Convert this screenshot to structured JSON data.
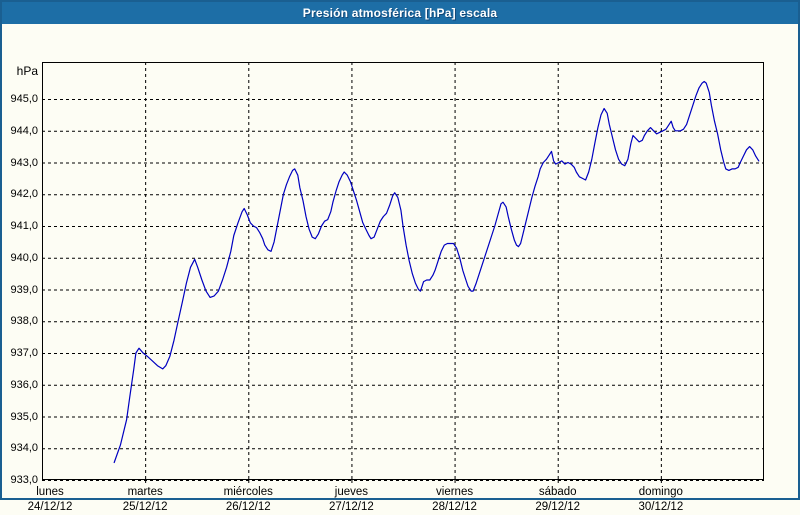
{
  "window": {
    "title": "Presión atmosférica [hPa] escala"
  },
  "colors": {
    "titlebar_bg": "#1d6ea6",
    "titlebar_text": "#ffffff",
    "outer_border": "#1a5f91",
    "background": "#fdfdf4",
    "line": "#0000c0",
    "grid": "#000000",
    "text": "#000000"
  },
  "chart_data": {
    "type": "line",
    "title": "Presión atmosférica [hPa] escala",
    "unit_label": "hPa",
    "ylabel": "hPa",
    "ylim": [
      933.0,
      946.0
    ],
    "ytick_values": [
      945,
      944,
      943,
      942,
      941,
      940,
      939,
      938,
      937,
      936,
      935,
      934,
      933
    ],
    "ytick_labels": [
      "945,0",
      "944,0",
      "943,0",
      "942,0",
      "941,0",
      "940,0",
      "939,0",
      "938,0",
      "937,0",
      "936,0",
      "935,0",
      "934,0",
      "933,0"
    ],
    "x_axis_days": [
      {
        "name": "lunes",
        "date": "24/12/12"
      },
      {
        "name": "martes",
        "date": "25/12/12"
      },
      {
        "name": "miércoles",
        "date": "26/12/12"
      },
      {
        "name": "jueves",
        "date": "27/12/12"
      },
      {
        "name": "viernes",
        "date": "28/12/12"
      },
      {
        "name": "sábado",
        "date": "29/12/12"
      },
      {
        "name": "domingo",
        "date": "30/12/12"
      }
    ],
    "grid": "dashed",
    "legend": false,
    "series": [
      {
        "name": "Presión atmosférica",
        "color": "#0000c0",
        "x_unit": "days_since_2012-12-24",
        "points": [
          [
            0.7,
            933.55
          ],
          [
            0.76,
            934.1
          ],
          [
            0.82,
            934.9
          ],
          [
            0.85,
            935.6
          ],
          [
            0.89,
            936.5
          ],
          [
            0.91,
            937.0
          ],
          [
            0.94,
            937.15
          ],
          [
            0.98,
            937.0
          ],
          [
            1.02,
            936.9
          ],
          [
            1.07,
            936.75
          ],
          [
            1.12,
            936.6
          ],
          [
            1.17,
            936.5
          ],
          [
            1.2,
            936.6
          ],
          [
            1.24,
            936.9
          ],
          [
            1.28,
            937.4
          ],
          [
            1.32,
            938.0
          ],
          [
            1.36,
            938.6
          ],
          [
            1.4,
            939.2
          ],
          [
            1.44,
            939.7
          ],
          [
            1.48,
            939.95
          ],
          [
            1.51,
            939.7
          ],
          [
            1.55,
            939.3
          ],
          [
            1.59,
            938.95
          ],
          [
            1.63,
            938.75
          ],
          [
            1.67,
            938.8
          ],
          [
            1.71,
            938.95
          ],
          [
            1.75,
            939.3
          ],
          [
            1.79,
            939.7
          ],
          [
            1.83,
            940.2
          ],
          [
            1.86,
            940.7
          ],
          [
            1.9,
            941.1
          ],
          [
            1.94,
            941.45
          ],
          [
            1.96,
            941.55
          ],
          [
            1.99,
            941.35
          ],
          [
            2.02,
            941.1
          ],
          [
            2.05,
            941.0
          ],
          [
            2.08,
            940.95
          ],
          [
            2.11,
            940.8
          ],
          [
            2.14,
            940.6
          ],
          [
            2.16,
            940.4
          ],
          [
            2.19,
            940.25
          ],
          [
            2.22,
            940.2
          ],
          [
            2.25,
            940.5
          ],
          [
            2.28,
            941.0
          ],
          [
            2.31,
            941.5
          ],
          [
            2.34,
            942.0
          ],
          [
            2.37,
            942.3
          ],
          [
            2.4,
            942.55
          ],
          [
            2.43,
            942.75
          ],
          [
            2.45,
            942.8
          ],
          [
            2.48,
            942.6
          ],
          [
            2.5,
            942.2
          ],
          [
            2.53,
            941.8
          ],
          [
            2.56,
            941.3
          ],
          [
            2.59,
            940.9
          ],
          [
            2.62,
            940.65
          ],
          [
            2.65,
            940.6
          ],
          [
            2.68,
            940.75
          ],
          [
            2.71,
            941.0
          ],
          [
            2.74,
            941.15
          ],
          [
            2.77,
            941.2
          ],
          [
            2.8,
            941.45
          ],
          [
            2.82,
            941.75
          ],
          [
            2.85,
            942.1
          ],
          [
            2.88,
            942.4
          ],
          [
            2.91,
            942.6
          ],
          [
            2.93,
            942.7
          ],
          [
            2.96,
            942.6
          ],
          [
            2.99,
            942.4
          ],
          [
            3.02,
            942.1
          ],
          [
            3.05,
            941.8
          ],
          [
            3.08,
            941.45
          ],
          [
            3.11,
            941.1
          ],
          [
            3.14,
            940.9
          ],
          [
            3.17,
            940.7
          ],
          [
            3.19,
            940.6
          ],
          [
            3.22,
            940.65
          ],
          [
            3.25,
            940.9
          ],
          [
            3.28,
            941.15
          ],
          [
            3.31,
            941.3
          ],
          [
            3.34,
            941.4
          ],
          [
            3.37,
            941.65
          ],
          [
            3.4,
            941.95
          ],
          [
            3.42,
            942.05
          ],
          [
            3.45,
            941.9
          ],
          [
            3.48,
            941.5
          ],
          [
            3.5,
            941.0
          ],
          [
            3.53,
            940.4
          ],
          [
            3.56,
            939.9
          ],
          [
            3.59,
            939.5
          ],
          [
            3.62,
            939.2
          ],
          [
            3.65,
            939.0
          ],
          [
            3.67,
            938.95
          ],
          [
            3.7,
            939.25
          ],
          [
            3.73,
            939.3
          ],
          [
            3.76,
            939.3
          ],
          [
            3.79,
            939.45
          ],
          [
            3.81,
            939.6
          ],
          [
            3.84,
            939.9
          ],
          [
            3.87,
            940.2
          ],
          [
            3.9,
            940.4
          ],
          [
            3.93,
            940.45
          ],
          [
            3.96,
            940.45
          ],
          [
            3.99,
            940.45
          ],
          [
            4.02,
            940.3
          ],
          [
            4.05,
            940.0
          ],
          [
            4.08,
            939.6
          ],
          [
            4.11,
            939.3
          ],
          [
            4.13,
            939.1
          ],
          [
            4.16,
            938.95
          ],
          [
            4.18,
            938.95
          ],
          [
            4.21,
            939.2
          ],
          [
            4.24,
            939.5
          ],
          [
            4.27,
            939.8
          ],
          [
            4.3,
            940.1
          ],
          [
            4.33,
            940.4
          ],
          [
            4.36,
            940.7
          ],
          [
            4.39,
            941.0
          ],
          [
            4.42,
            941.35
          ],
          [
            4.45,
            941.7
          ],
          [
            4.47,
            941.75
          ],
          [
            4.5,
            941.6
          ],
          [
            4.52,
            941.3
          ],
          [
            4.55,
            940.9
          ],
          [
            4.58,
            940.55
          ],
          [
            4.6,
            940.4
          ],
          [
            4.62,
            940.35
          ],
          [
            4.64,
            940.45
          ],
          [
            4.66,
            940.7
          ],
          [
            4.69,
            941.1
          ],
          [
            4.72,
            941.5
          ],
          [
            4.75,
            941.9
          ],
          [
            4.78,
            942.25
          ],
          [
            4.81,
            942.55
          ],
          [
            4.83,
            942.8
          ],
          [
            4.86,
            943.0
          ],
          [
            4.89,
            943.1
          ],
          [
            4.92,
            943.25
          ],
          [
            4.94,
            943.35
          ],
          [
            4.96,
            943.05
          ],
          [
            4.98,
            942.95
          ],
          [
            5.01,
            943.0
          ],
          [
            5.04,
            943.05
          ],
          [
            5.07,
            942.95
          ],
          [
            5.1,
            943.0
          ],
          [
            5.13,
            942.95
          ],
          [
            5.16,
            942.85
          ],
          [
            5.18,
            942.7
          ],
          [
            5.21,
            942.55
          ],
          [
            5.24,
            942.5
          ],
          [
            5.27,
            942.45
          ],
          [
            5.3,
            942.7
          ],
          [
            5.33,
            943.1
          ],
          [
            5.36,
            943.6
          ],
          [
            5.39,
            944.1
          ],
          [
            5.42,
            944.5
          ],
          [
            5.45,
            944.7
          ],
          [
            5.48,
            944.55
          ],
          [
            5.5,
            944.2
          ],
          [
            5.53,
            943.8
          ],
          [
            5.56,
            943.4
          ],
          [
            5.59,
            943.1
          ],
          [
            5.62,
            942.95
          ],
          [
            5.65,
            942.9
          ],
          [
            5.68,
            943.1
          ],
          [
            5.71,
            943.6
          ],
          [
            5.73,
            943.85
          ],
          [
            5.76,
            943.75
          ],
          [
            5.79,
            943.65
          ],
          [
            5.82,
            943.7
          ],
          [
            5.84,
            943.85
          ],
          [
            5.87,
            944.0
          ],
          [
            5.9,
            944.1
          ],
          [
            5.93,
            944.0
          ],
          [
            5.96,
            943.9
          ],
          [
            5.99,
            943.95
          ],
          [
            6.02,
            944.0
          ],
          [
            6.05,
            944.05
          ],
          [
            6.08,
            944.2
          ],
          [
            6.1,
            944.3
          ],
          [
            6.12,
            944.1
          ],
          [
            6.14,
            944.0
          ],
          [
            6.17,
            944.0
          ],
          [
            6.19,
            944.0
          ],
          [
            6.22,
            944.05
          ],
          [
            6.25,
            944.2
          ],
          [
            6.28,
            944.5
          ],
          [
            6.31,
            944.8
          ],
          [
            6.34,
            945.1
          ],
          [
            6.37,
            945.35
          ],
          [
            6.4,
            945.5
          ],
          [
            6.42,
            945.55
          ],
          [
            6.44,
            945.5
          ],
          [
            6.47,
            945.2
          ],
          [
            6.49,
            944.8
          ],
          [
            6.52,
            944.3
          ],
          [
            6.55,
            943.9
          ],
          [
            6.58,
            943.4
          ],
          [
            6.61,
            943.0
          ],
          [
            6.63,
            942.8
          ],
          [
            6.66,
            942.75
          ],
          [
            6.69,
            942.8
          ],
          [
            6.72,
            942.8
          ],
          [
            6.75,
            942.85
          ],
          [
            6.77,
            943.0
          ],
          [
            6.8,
            943.2
          ],
          [
            6.83,
            943.4
          ],
          [
            6.86,
            943.5
          ],
          [
            6.89,
            943.4
          ],
          [
            6.92,
            943.2
          ],
          [
            6.95,
            943.05
          ]
        ]
      }
    ]
  }
}
